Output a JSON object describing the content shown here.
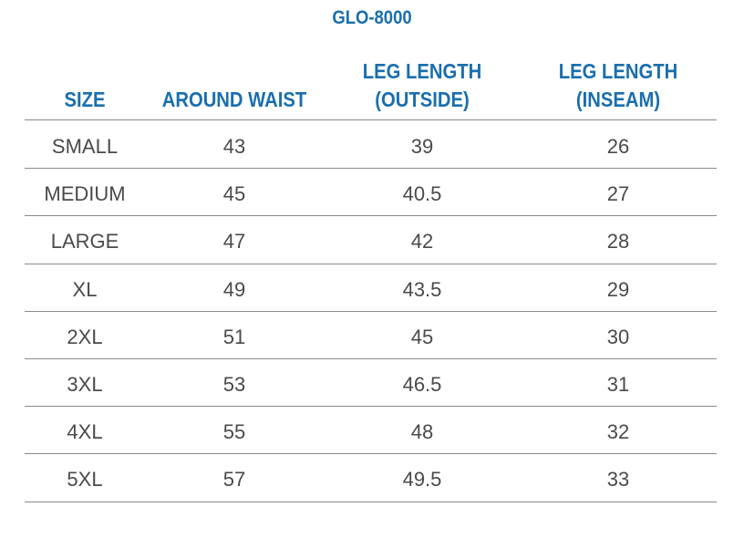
{
  "title": "GLO-8000",
  "table": {
    "headers": [
      "SIZE",
      "AROUND WAIST",
      "LEG LENGTH\n(OUTSIDE)",
      "LEG LENGTH\n(INSEAM)"
    ],
    "rows": [
      [
        "SMALL",
        "43",
        "39",
        "26"
      ],
      [
        "MEDIUM",
        "45",
        "40.5",
        "27"
      ],
      [
        "LARGE",
        "47",
        "42",
        "28"
      ],
      [
        "XL",
        "49",
        "43.5",
        "29"
      ],
      [
        "2XL",
        "51",
        "45",
        "30"
      ],
      [
        "3XL",
        "53",
        "46.5",
        "31"
      ],
      [
        "4XL",
        "55",
        "48",
        "32"
      ],
      [
        "5XL",
        "57",
        "49.5",
        "33"
      ]
    ]
  },
  "colors": {
    "heading": "#1a6fae",
    "body_text": "#4a4a4a",
    "rule": "#8a8a8a"
  }
}
